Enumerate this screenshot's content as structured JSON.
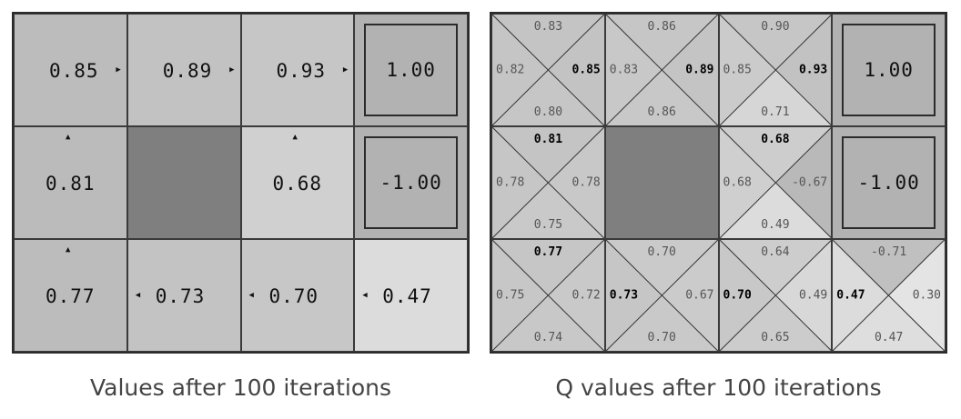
{
  "value_grid": {
    "caption": "Values after 100 iterations",
    "cells": [
      {
        "type": "normal",
        "value": "0.85",
        "arrow": "right",
        "shade": "#bcbcbc"
      },
      {
        "type": "normal",
        "value": "0.89",
        "arrow": "right",
        "shade": "#c2c2c2"
      },
      {
        "type": "normal",
        "value": "0.93",
        "arrow": "right",
        "shade": "#c6c6c6"
      },
      {
        "type": "terminal",
        "value": "1.00",
        "shade": "#b2b2b2"
      },
      {
        "type": "normal",
        "value": "0.81",
        "arrow": "up",
        "shade": "#bbbbbb"
      },
      {
        "type": "wall",
        "value": "",
        "shade": "#7f7f7f"
      },
      {
        "type": "normal",
        "value": "0.68",
        "arrow": "up",
        "shade": "#d0d0d0"
      },
      {
        "type": "terminal",
        "value": "-1.00",
        "shade": "#b2b2b2"
      },
      {
        "type": "normal",
        "value": "0.77",
        "arrow": "up",
        "shade": "#bcbcbc"
      },
      {
        "type": "normal",
        "value": "0.73",
        "arrow": "left",
        "shade": "#c3c3c3"
      },
      {
        "type": "normal",
        "value": "0.70",
        "arrow": "left",
        "shade": "#c7c7c7"
      },
      {
        "type": "normal",
        "value": "0.47",
        "arrow": "left",
        "shade": "#dcdcdc"
      }
    ]
  },
  "q_grid": {
    "caption": "Q values after 100 iterations",
    "cells": [
      {
        "type": "q",
        "top": "0.83",
        "right": "0.85",
        "bottom": "0.80",
        "left": "0.82",
        "best": "right",
        "colors": {
          "top": "#c4c4c4",
          "right": "#c3c3c3",
          "bottom": "#c6c6c6",
          "left": "#c5c5c5"
        }
      },
      {
        "type": "q",
        "top": "0.86",
        "right": "0.89",
        "bottom": "0.86",
        "left": "0.83",
        "best": "right",
        "colors": {
          "top": "#c6c6c6",
          "right": "#c4c4c4",
          "bottom": "#c8c8c8",
          "left": "#c8c8c8"
        }
      },
      {
        "type": "q",
        "top": "0.90",
        "right": "0.93",
        "bottom": "0.71",
        "left": "0.85",
        "best": "right",
        "colors": {
          "top": "#c6c6c6",
          "right": "#c2c2c2",
          "bottom": "#d6d6d6",
          "left": "#cbcbcb"
        }
      },
      {
        "type": "terminal",
        "value": "1.00",
        "shade": "#b2b2b2"
      },
      {
        "type": "q",
        "top": "0.81",
        "right": "0.78",
        "bottom": "0.75",
        "left": "0.78",
        "best": "top",
        "colors": {
          "top": "#c4c4c4",
          "right": "#c8c8c8",
          "bottom": "#c9c9c9",
          "left": "#c6c6c6"
        }
      },
      {
        "type": "wall",
        "value": "",
        "shade": "#7f7f7f"
      },
      {
        "type": "q",
        "top": "0.68",
        "right": "-0.67",
        "bottom": "0.49",
        "left": "0.68",
        "best": "top",
        "colors": {
          "top": "#cdcdcd",
          "right": "#b9b9b9",
          "bottom": "#dcdcdc",
          "left": "#cfcfcf"
        }
      },
      {
        "type": "terminal",
        "value": "-1.00",
        "shade": "#b2b2b2"
      },
      {
        "type": "q",
        "top": "0.77",
        "right": "0.72",
        "bottom": "0.74",
        "left": "0.75",
        "best": "top",
        "colors": {
          "top": "#c6c6c6",
          "right": "#c9c9c9",
          "bottom": "#c8c8c8",
          "left": "#c7c7c7"
        }
      },
      {
        "type": "q",
        "top": "0.70",
        "right": "0.67",
        "bottom": "0.70",
        "left": "0.73",
        "best": "left",
        "colors": {
          "top": "#cacaca",
          "right": "#cbcbcb",
          "bottom": "#c9c9c9",
          "left": "#c6c6c6"
        }
      },
      {
        "type": "q",
        "top": "0.64",
        "right": "0.49",
        "bottom": "0.65",
        "left": "0.70",
        "best": "left",
        "colors": {
          "top": "#cdcdcd",
          "right": "#d8d8d8",
          "bottom": "#cccccc",
          "left": "#c8c8c8"
        }
      },
      {
        "type": "q",
        "top": "-0.71",
        "right": "0.30",
        "bottom": "0.47",
        "left": "0.47",
        "best": "left",
        "colors": {
          "top": "#c0c0c0",
          "right": "#e4e4e4",
          "bottom": "#dedede",
          "left": "#dcdcdc"
        }
      }
    ]
  }
}
